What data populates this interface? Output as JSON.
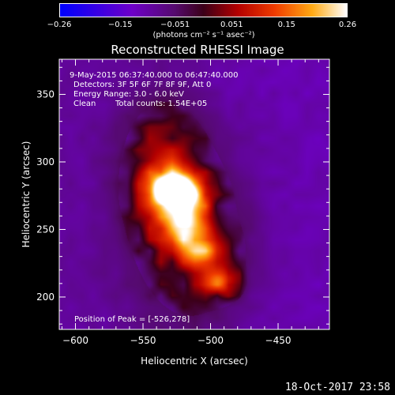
{
  "chart_data": {
    "type": "heatmap",
    "title": "Reconstructed RHESSI Image",
    "xlabel": "Heliocentric X (arcsec)",
    "ylabel": "Heliocentric Y (arcsec)",
    "xlim": [
      -612,
      -412
    ],
    "ylim": [
      176,
      376
    ],
    "xticks": [
      -600,
      -550,
      -500,
      -450
    ],
    "yticks": [
      200,
      250,
      300,
      350
    ],
    "xtick_labels": [
      "−600",
      "−550",
      "−500",
      "−450"
    ],
    "ytick_labels": [
      "200",
      "250",
      "300",
      "350"
    ],
    "colorbar": {
      "range": [
        -0.26,
        0.26
      ],
      "ticks": [
        -0.26,
        -0.15,
        -0.051,
        0.051,
        0.15,
        0.26
      ],
      "tick_labels": [
        "−0.26",
        "−0.15",
        "−0.051",
        "0.051",
        "0.15",
        "0.26"
      ],
      "unit": "(photons cm⁻² s⁻¹ asec⁻²)"
    },
    "annotations": {
      "time_range": "9-May-2015 06:37:40.000 to 06:47:40.000",
      "detectors": "Detectors: 3F 5F 6F 7F 8F 9F, Att 0",
      "energy_range": "Energy Range: 3.0 - 6.0 keV",
      "method": "Clean",
      "total_counts": "Total counts: 1.54E+05",
      "peak_position": "Position of Peak = [-526,278]"
    },
    "peak": {
      "x": -526,
      "y": 278,
      "value": 0.26
    },
    "sources": [
      {
        "x": -526,
        "y": 278,
        "sx": 14,
        "sy": 11,
        "amp": 1.0
      },
      {
        "x": -519,
        "y": 253,
        "sx": 11,
        "sy": 9,
        "amp": 0.55
      },
      {
        "x": -505,
        "y": 235,
        "sx": 13,
        "sy": 10,
        "amp": 0.45
      },
      {
        "x": -492,
        "y": 212,
        "sx": 9,
        "sy": 8,
        "amp": 0.5
      },
      {
        "x": -535,
        "y": 295,
        "sx": 22,
        "sy": 36,
        "amp": 0.35
      },
      {
        "x": -515,
        "y": 240,
        "sx": 30,
        "sy": 45,
        "amp": 0.3
      }
    ]
  },
  "footer": {
    "date": "18-Oct-2017 23:58"
  }
}
